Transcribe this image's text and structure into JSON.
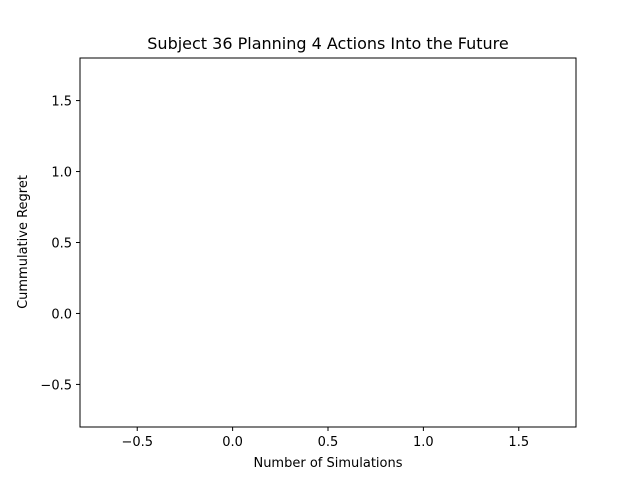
{
  "chart_data": {
    "type": "line",
    "title": "Subject 36 Planning 4 Actions Into the Future",
    "xlabel": "Number of Simulations",
    "ylabel": "Cummulative Regret",
    "xlim": [
      -0.8,
      1.8
    ],
    "ylim": [
      -0.8,
      1.8
    ],
    "x_ticks": [
      -0.5,
      0.0,
      0.5,
      1.0,
      1.5
    ],
    "x_tick_labels": [
      "−0.5",
      "0.0",
      "0.5",
      "1.0",
      "1.5"
    ],
    "y_ticks": [
      -0.5,
      0.0,
      0.5,
      1.0,
      1.5
    ],
    "y_tick_labels": [
      "−0.5",
      "0.0",
      "0.5",
      "1.0",
      "1.5"
    ],
    "grid": false,
    "series": []
  }
}
